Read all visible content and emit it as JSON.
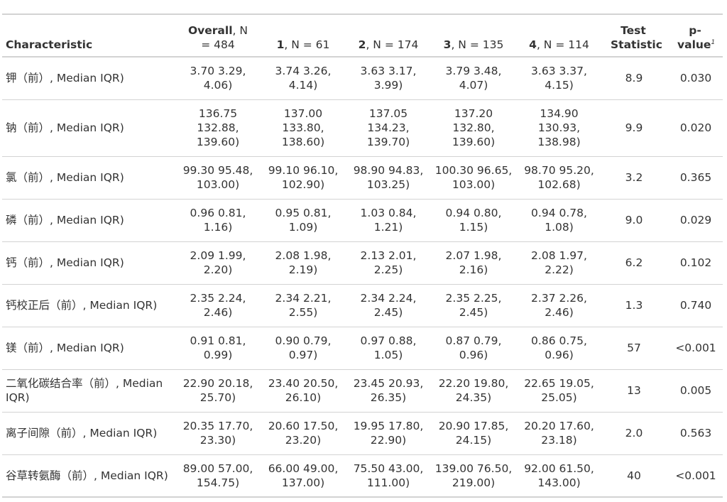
{
  "header": {
    "characteristic": "Characteristic",
    "overall_bold": "Overall",
    "overall_rest": ", N = 484",
    "g1_bold": "1",
    "g1_rest": ", N = 61",
    "g2_bold": "2",
    "g2_rest": ", N = 174",
    "g3_bold": "3",
    "g3_rest": ", N = 135",
    "g4_bold": "4",
    "g4_rest": ", N = 114",
    "test_statistic": "Test Statistic",
    "p_value": "p-value",
    "p_value_footnote": "1"
  },
  "rows": [
    {
      "characteristic": "钾（前）, Median IQR)",
      "overall": "3.70 3.29, 4.06)",
      "g1": "3.74 3.26, 4.14)",
      "g2": "3.63 3.17, 3.99)",
      "g3": "3.79 3.48, 4.07)",
      "g4": "3.63 3.37, 4.15)",
      "statistic": "8.9",
      "p": "0.030"
    },
    {
      "characteristic": "钠（前）, Median IQR)",
      "overall": "136.75 132.88, 139.60)",
      "g1": "137.00 133.80, 138.60)",
      "g2": "137.05 134.23, 139.70)",
      "g3": "137.20 132.80, 139.60)",
      "g4": "134.90 130.93, 138.98)",
      "statistic": "9.9",
      "p": "0.020"
    },
    {
      "characteristic": "氯（前）, Median IQR)",
      "overall": "99.30 95.48, 103.00)",
      "g1": "99.10 96.10, 102.90)",
      "g2": "98.90 94.83, 103.25)",
      "g3": "100.30 96.65, 103.00)",
      "g4": "98.70 95.20, 102.68)",
      "statistic": "3.2",
      "p": "0.365"
    },
    {
      "characteristic": "磷（前）, Median IQR)",
      "overall": "0.96 0.81, 1.16)",
      "g1": "0.95 0.81, 1.09)",
      "g2": "1.03 0.84, 1.21)",
      "g3": "0.94 0.80, 1.15)",
      "g4": "0.94 0.78, 1.08)",
      "statistic": "9.0",
      "p": "0.029"
    },
    {
      "characteristic": "钙（前）, Median IQR)",
      "overall": "2.09 1.99, 2.20)",
      "g1": "2.08 1.98, 2.19)",
      "g2": "2.13 2.01, 2.25)",
      "g3": "2.07 1.98, 2.16)",
      "g4": "2.08 1.97, 2.22)",
      "statistic": "6.2",
      "p": "0.102"
    },
    {
      "characteristic": "钙校正后（前）, Median IQR)",
      "overall": "2.35 2.24, 2.46)",
      "g1": "2.34 2.21, 2.55)",
      "g2": "2.34 2.24, 2.45)",
      "g3": "2.35 2.25, 2.45)",
      "g4": "2.37 2.26, 2.46)",
      "statistic": "1.3",
      "p": "0.740"
    },
    {
      "characteristic": "镁（前）, Median IQR)",
      "overall": "0.91 0.81, 0.99)",
      "g1": "0.90 0.79, 0.97)",
      "g2": "0.97 0.88, 1.05)",
      "g3": "0.87 0.79, 0.96)",
      "g4": "0.86 0.75, 0.96)",
      "statistic": "57",
      "p": "<0.001"
    },
    {
      "characteristic": "二氧化碳结合率（前）, Median IQR)",
      "overall": "22.90 20.18, 25.70)",
      "g1": "23.40 20.50, 26.10)",
      "g2": "23.45 20.93, 26.35)",
      "g3": "22.20 19.80, 24.35)",
      "g4": "22.65 19.05, 25.05)",
      "statistic": "13",
      "p": "0.005"
    },
    {
      "characteristic": "离子间隙（前）, Median IQR)",
      "overall": "20.35 17.70, 23.30)",
      "g1": "20.60 17.50, 23.20)",
      "g2": "19.95 17.80, 22.90)",
      "g3": "20.90 17.85, 24.15)",
      "g4": "20.20 17.60, 23.18)",
      "statistic": "2.0",
      "p": "0.563"
    },
    {
      "characteristic": "谷草转氨酶（前）, Median IQR)",
      "overall": "89.00 57.00, 154.75)",
      "g1": "66.00 49.00, 137.00)",
      "g2": "75.50 43.00, 111.00)",
      "g3": "139.00 76.50, 219.00)",
      "g4": "92.00 61.50, 143.00)",
      "statistic": "40",
      "p": "<0.001"
    }
  ]
}
